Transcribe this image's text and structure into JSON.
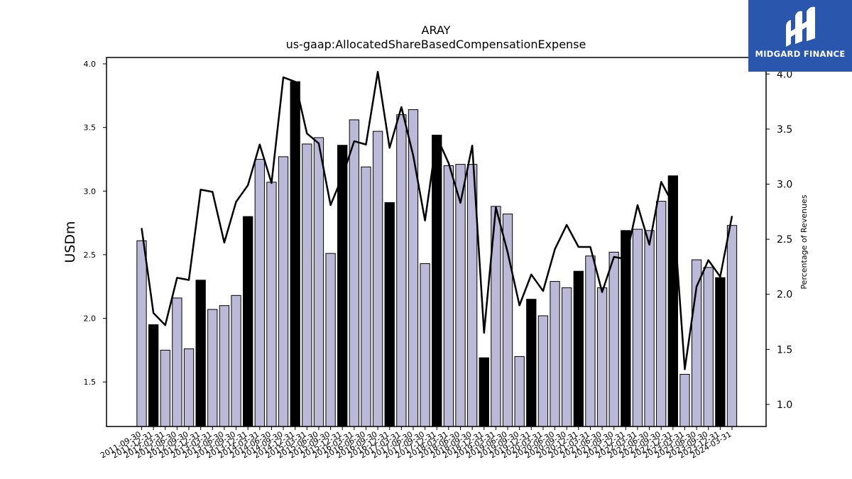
{
  "chart_data": {
    "type": "bar",
    "title": "ARAY",
    "subtitle": "us-gaap:AllocatedShareBasedCompensationExpense",
    "ylabel": "USDm",
    "y2label": "Percentage of Revenues",
    "ylim": [
      1.15,
      4.05
    ],
    "y2lim": [
      0.8,
      4.15
    ],
    "yticks": [
      "1.5",
      "2.0",
      "2.5",
      "3.0",
      "3.5",
      "4.0"
    ],
    "y2ticks": [
      "1.0",
      "1.5",
      "2.0",
      "2.5",
      "3.0",
      "3.5",
      "4.0"
    ],
    "grid": false,
    "legend": "none",
    "colors": {
      "bar": "#bcb8d8",
      "bar_highlight": "#000000",
      "line": "#000000"
    },
    "categories": [
      "2011-09-30",
      "2011-12-31",
      "2012-03-31",
      "2012-06-30",
      "2012-09-30",
      "2012-12-31",
      "2013-03-31",
      "2013-06-30",
      "2013-09-30",
      "2013-12-31",
      "2014-03-31",
      "2014-06-30",
      "2014-09-30",
      "2014-12-31",
      "2015-03-31",
      "2015-06-30",
      "2015-09-30",
      "2015-12-31",
      "2016-03-31",
      "2016-06-30",
      "2016-09-30",
      "2016-12-31",
      "2017-03-31",
      "2017-06-30",
      "2017-09-30",
      "2017-12-31",
      "2018-03-31",
      "2018-06-30",
      "2018-09-30",
      "2018-12-31",
      "2019-03-31",
      "2019-06-30",
      "2019-09-30",
      "2019-12-31",
      "2020-03-31",
      "2020-06-30",
      "2020-09-30",
      "2020-12-31",
      "2021-03-31",
      "2021-06-30",
      "2021-09-30",
      "2021-12-31",
      "2022-03-31",
      "2022-06-30",
      "2022-09-30",
      "2022-12-31",
      "2023-03-31",
      "2023-06-30",
      "2023-09-30",
      "2023-12-31",
      "2024-03-31"
    ],
    "series": [
      {
        "type": "bar",
        "axis": "left",
        "values": [
          2.61,
          1.95,
          1.75,
          2.16,
          1.76,
          2.3,
          2.07,
          2.1,
          2.18,
          2.8,
          3.25,
          3.07,
          3.27,
          3.86,
          3.37,
          3.42,
          2.51,
          3.36,
          3.56,
          3.19,
          3.47,
          2.91,
          3.6,
          3.64,
          2.43,
          3.44,
          3.2,
          3.21,
          3.21,
          1.69,
          2.88,
          2.82,
          1.7,
          2.15,
          2.02,
          2.29,
          2.24,
          2.37,
          2.49,
          2.24,
          2.52,
          2.69,
          2.7,
          2.69,
          2.92,
          3.12,
          1.56,
          2.46,
          2.4,
          2.32,
          2.73
        ],
        "highlight": [
          false,
          true,
          false,
          false,
          false,
          true,
          false,
          false,
          false,
          true,
          false,
          false,
          false,
          true,
          false,
          false,
          false,
          true,
          false,
          false,
          false,
          true,
          false,
          false,
          false,
          true,
          false,
          false,
          false,
          true,
          false,
          false,
          false,
          true,
          false,
          false,
          false,
          true,
          false,
          false,
          false,
          true,
          false,
          false,
          false,
          true,
          false,
          false,
          false,
          true,
          false
        ]
      },
      {
        "type": "line",
        "axis": "right",
        "values": [
          2.6,
          1.83,
          1.72,
          2.15,
          2.13,
          2.95,
          2.93,
          2.47,
          2.84,
          2.99,
          3.36,
          3.01,
          3.97,
          3.93,
          3.46,
          3.37,
          2.81,
          3.07,
          3.39,
          3.36,
          4.02,
          3.33,
          3.7,
          3.26,
          2.67,
          3.43,
          3.19,
          2.83,
          3.35,
          1.65,
          2.79,
          2.38,
          1.9,
          2.18,
          2.03,
          2.41,
          2.63,
          2.43,
          2.43,
          2.02,
          2.34,
          2.32,
          2.81,
          2.45,
          3.02,
          2.82,
          1.32,
          2.07,
          2.31,
          2.16,
          2.71
        ]
      }
    ]
  }
}
